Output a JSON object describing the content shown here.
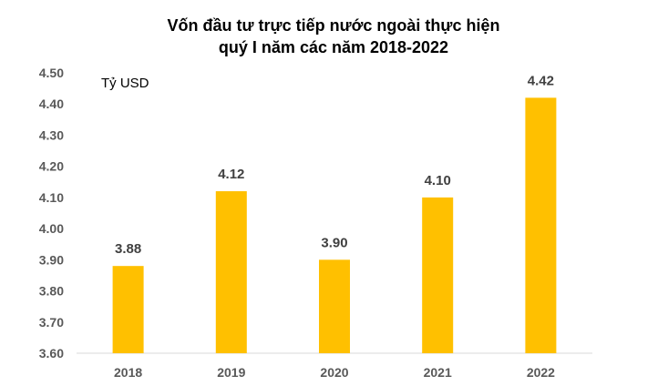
{
  "chart_data": {
    "type": "bar",
    "title_lines": [
      "Vốn đầu tư trực tiếp nước ngoài thực hiện",
      "quý I năm các năm 2018-2022"
    ],
    "ylabel": "Tỷ USD",
    "xlabel": "",
    "categories": [
      "2018",
      "2019",
      "2020",
      "2021",
      "2022"
    ],
    "values": [
      3.88,
      4.12,
      3.9,
      4.1,
      4.42
    ],
    "value_labels": [
      "3.88",
      "4.12",
      "3.90",
      "4.10",
      "4.42"
    ],
    "ylim": [
      3.6,
      4.5
    ],
    "yticks": [
      "3.60",
      "3.70",
      "3.80",
      "3.90",
      "4.00",
      "4.10",
      "4.20",
      "4.30",
      "4.40",
      "4.50"
    ],
    "grid": false,
    "legend": "none",
    "bar_color": "#FFC000"
  }
}
